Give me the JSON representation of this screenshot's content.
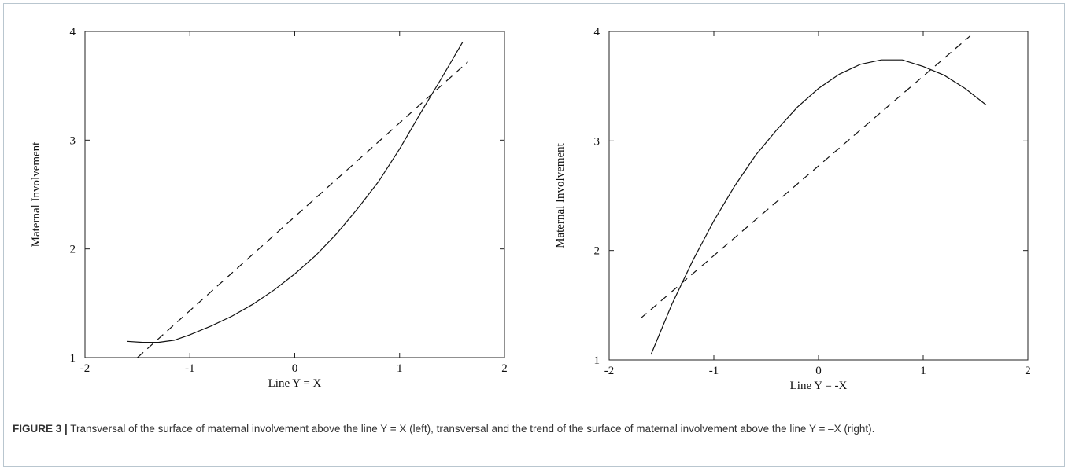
{
  "chart_data": [
    {
      "type": "line",
      "xlabel": "Line Y = X",
      "ylabel": "Maternal Involvement",
      "xlim": [
        -2,
        2
      ],
      "ylim": [
        1,
        4
      ],
      "xticks": [
        "-2",
        "-1",
        "0",
        "1",
        "2"
      ],
      "yticks": [
        "1",
        "2",
        "3",
        "4"
      ],
      "series": [
        {
          "style": "solid",
          "x": [
            -1.6,
            -1.45,
            -1.3,
            -1.15,
            -1.0,
            -0.8,
            -0.6,
            -0.4,
            -0.2,
            0.0,
            0.2,
            0.4,
            0.6,
            0.8,
            1.0,
            1.2,
            1.4,
            1.6
          ],
          "y": [
            1.15,
            1.14,
            1.14,
            1.16,
            1.21,
            1.29,
            1.38,
            1.49,
            1.62,
            1.77,
            1.94,
            2.14,
            2.37,
            2.62,
            2.92,
            3.25,
            3.57,
            3.9
          ]
        },
        {
          "style": "dashed",
          "x": [
            -1.5,
            1.65
          ],
          "y": [
            1.0,
            3.72
          ]
        }
      ]
    },
    {
      "type": "line",
      "xlabel": "Line Y = -X",
      "ylabel": "Maternal Involvement",
      "xlim": [
        -2,
        2
      ],
      "ylim": [
        1,
        4
      ],
      "xticks": [
        "-2",
        "-1",
        "0",
        "1",
        "2"
      ],
      "yticks": [
        "1",
        "2",
        "3",
        "4"
      ],
      "series": [
        {
          "style": "solid",
          "x": [
            -1.6,
            -1.4,
            -1.2,
            -1.0,
            -0.8,
            -0.6,
            -0.4,
            -0.2,
            0.0,
            0.2,
            0.4,
            0.6,
            0.8,
            1.0,
            1.2,
            1.4,
            1.6
          ],
          "y": [
            1.05,
            1.51,
            1.91,
            2.27,
            2.59,
            2.87,
            3.1,
            3.31,
            3.48,
            3.61,
            3.7,
            3.74,
            3.74,
            3.68,
            3.6,
            3.48,
            3.33
          ]
        },
        {
          "style": "dashed",
          "x": [
            -1.7,
            1.45
          ],
          "y": [
            1.38,
            3.96
          ]
        }
      ]
    }
  ],
  "caption": {
    "label": "FIGURE 3 |",
    "text": " Transversal of the surface of maternal involvement above the line Y = X (left), transversal and the trend of the surface of maternal involvement above the line Y = –X (right)."
  }
}
